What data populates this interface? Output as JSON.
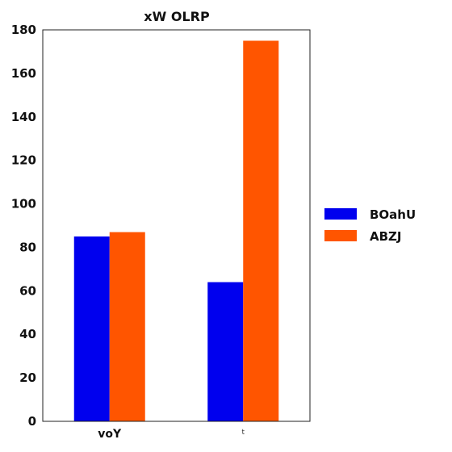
{
  "chart_data": {
    "type": "bar",
    "title": "xW  OLRP",
    "categories": [
      "voY",
      "t"
    ],
    "series": [
      {
        "name": "BOahU",
        "color": "#0000ee",
        "values": [
          85,
          64
        ]
      },
      {
        "name": "ABZJ",
        "color": "#ff5500",
        "values": [
          87,
          175
        ]
      }
    ],
    "xlabel": "",
    "ylabel": "",
    "ylim": [
      0,
      180
    ],
    "yticks": [
      0,
      20,
      40,
      60,
      80,
      100,
      120,
      140,
      160,
      180
    ],
    "grid": false,
    "legend_position": "right"
  }
}
